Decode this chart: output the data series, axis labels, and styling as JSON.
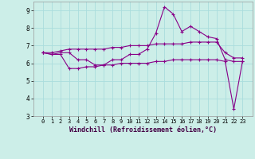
{
  "title": "",
  "xlabel": "Windchill (Refroidissement éolien,°C)",
  "bg_color": "#cceee8",
  "grid_color": "#aadddd",
  "line_color": "#880088",
  "x_values": [
    0,
    1,
    2,
    3,
    4,
    5,
    6,
    7,
    8,
    9,
    10,
    11,
    12,
    13,
    14,
    15,
    16,
    17,
    18,
    19,
    20,
    21,
    22,
    23
  ],
  "y_main": [
    6.6,
    6.5,
    6.6,
    6.6,
    6.2,
    6.2,
    5.9,
    5.9,
    6.2,
    6.2,
    6.5,
    6.5,
    6.8,
    7.7,
    9.2,
    8.8,
    7.8,
    8.1,
    7.8,
    7.5,
    7.4,
    6.2,
    6.1,
    6.1
  ],
  "y_upper": [
    6.6,
    6.6,
    6.7,
    6.8,
    6.8,
    6.8,
    6.8,
    6.8,
    6.9,
    6.9,
    7.0,
    7.0,
    7.0,
    7.1,
    7.1,
    7.1,
    7.1,
    7.2,
    7.2,
    7.2,
    7.2,
    6.6,
    6.3,
    6.3
  ],
  "y_lower": [
    6.6,
    6.5,
    6.5,
    5.7,
    5.7,
    5.8,
    5.8,
    5.9,
    5.9,
    6.0,
    6.0,
    6.0,
    6.0,
    6.1,
    6.1,
    6.2,
    6.2,
    6.2,
    6.2,
    6.2,
    6.2,
    6.1,
    3.4,
    6.1
  ],
  "ylim": [
    3,
    9.5
  ],
  "yticks": [
    3,
    4,
    5,
    6,
    7,
    8,
    9
  ],
  "xticks": [
    0,
    1,
    2,
    3,
    4,
    5,
    6,
    7,
    8,
    9,
    10,
    11,
    12,
    13,
    14,
    15,
    16,
    17,
    18,
    19,
    20,
    21,
    22,
    23
  ],
  "xlabel_fontsize": 6.0,
  "tick_fontsize": 5.5
}
